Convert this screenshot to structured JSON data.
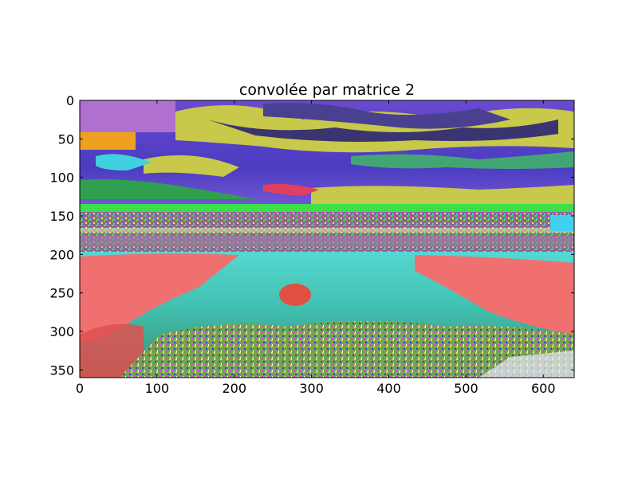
{
  "figure": {
    "title": "convolée par matrice 2"
  },
  "chart_data": {
    "type": "image",
    "title": "convolée par matrice 2",
    "xlabel": "",
    "ylabel": "",
    "xlim": [
      0,
      640
    ],
    "ylim": [
      360,
      0
    ],
    "x_ticks": [
      0,
      100,
      200,
      300,
      400,
      500,
      600
    ],
    "y_ticks": [
      0,
      50,
      100,
      150,
      200,
      250,
      300,
      350
    ],
    "image_description_colors": {
      "sky_purple": "#5a3fb0",
      "cloud_yellow": "#c8c84a",
      "cloud_dark": "#3a3470",
      "horizon_green": "#3be04a",
      "water_cyan": "#3ec8c0",
      "shore_salmon": "#f07070",
      "grass_green": "#6a9a4a",
      "magenta": "#d040d0",
      "orange": "#f0a020",
      "blue": "#3040d0"
    }
  }
}
